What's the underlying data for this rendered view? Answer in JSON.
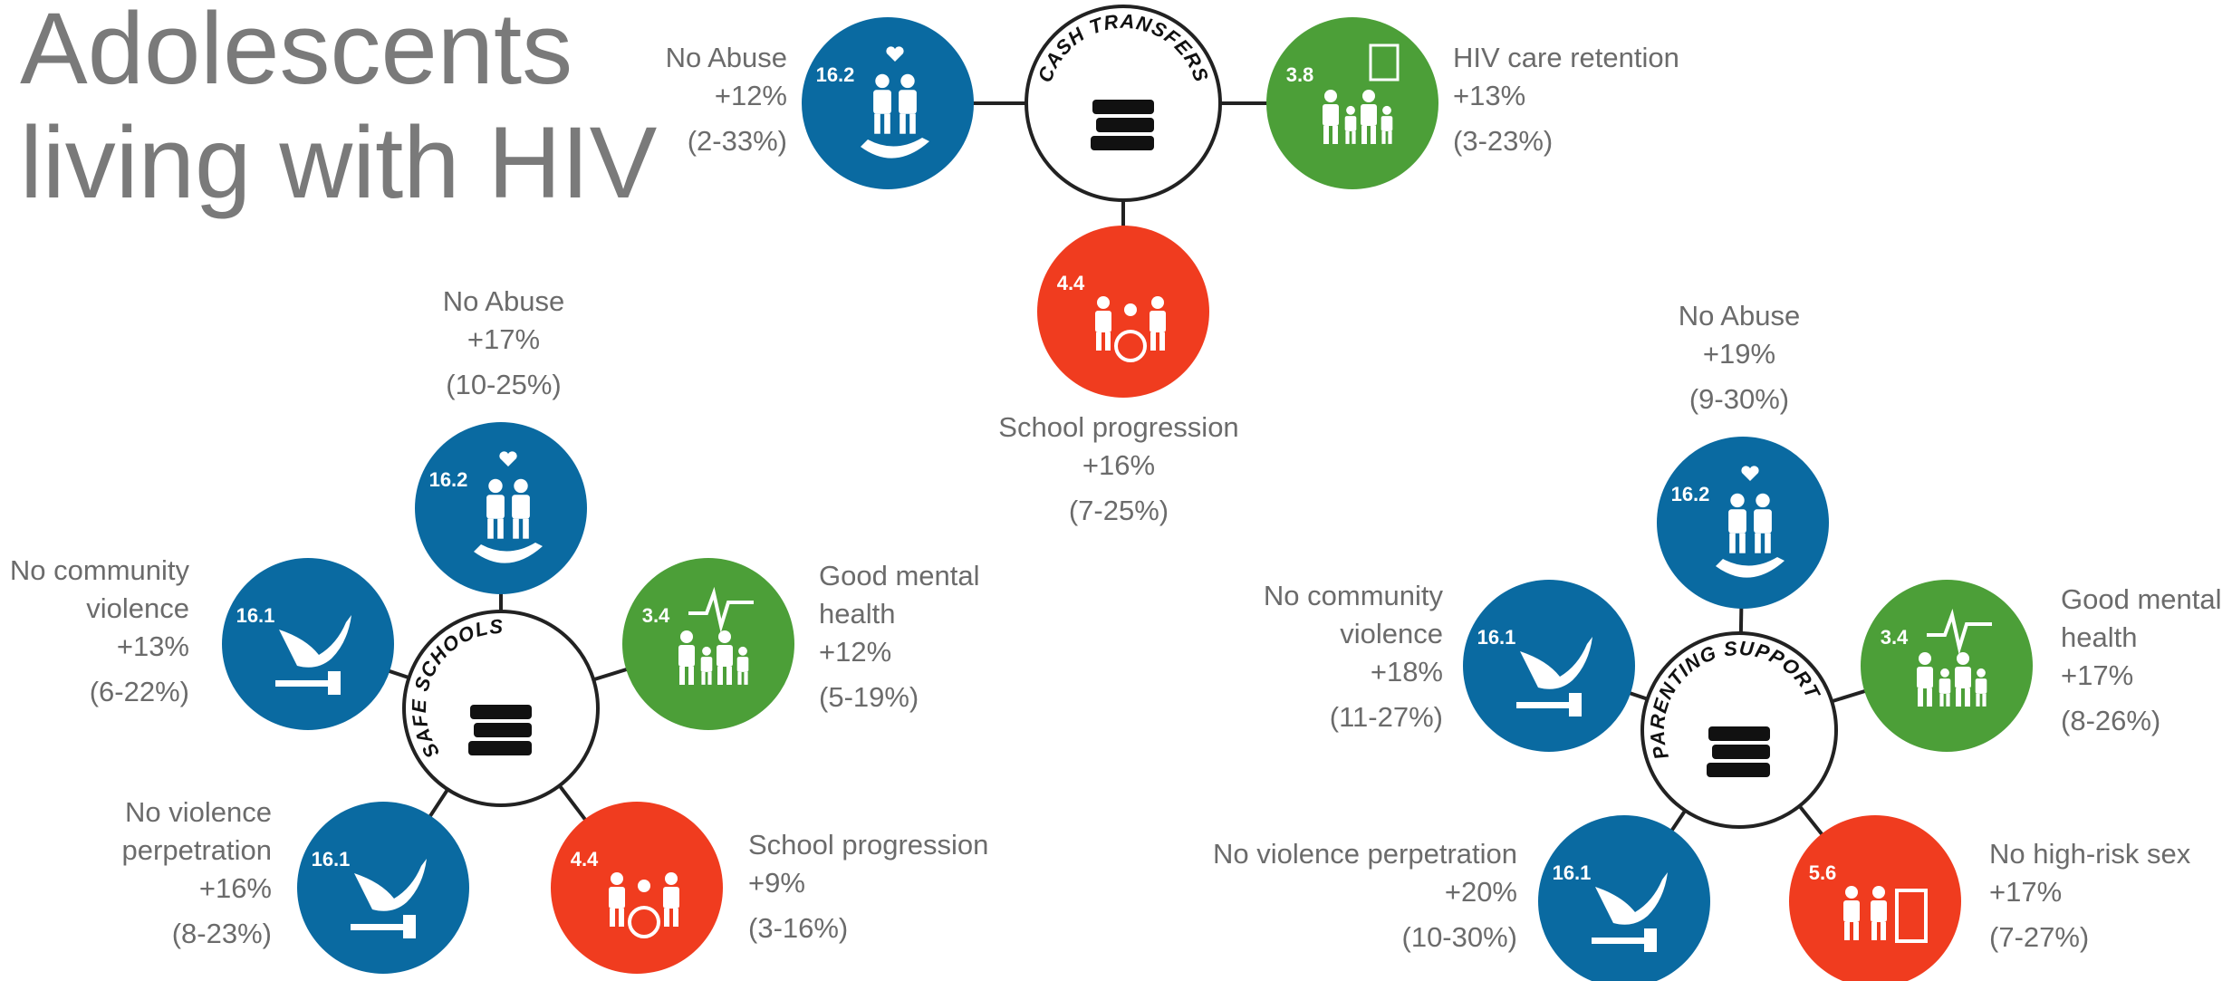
{
  "title": [
    "Adolescents",
    "living with HIV"
  ],
  "hubs": [
    {
      "label": "CASH TRANSFERS",
      "outcomes": [
        {
          "code": "16.2",
          "label": [
            "No Abuse"
          ],
          "effect": "+12%",
          "ci": "(2-33%)"
        },
        {
          "code": "3.8",
          "label": [
            "HIV care retention"
          ],
          "effect": "+13%",
          "ci": "(3-23%)"
        },
        {
          "code": "4.4",
          "label": [
            "School progression"
          ],
          "effect": "+16%",
          "ci": "(7-25%)"
        }
      ]
    },
    {
      "label": "SAFE SCHOOLS",
      "outcomes": [
        {
          "code": "16.2",
          "label": [
            "No Abuse"
          ],
          "effect": "+17%",
          "ci": "(10-25%)"
        },
        {
          "code": "3.4",
          "label": [
            "Good mental",
            "health"
          ],
          "effect": "+12%",
          "ci": "(5-19%)"
        },
        {
          "code": "4.4",
          "label": [
            "School progression"
          ],
          "effect": "+9%",
          "ci": "(3-16%)"
        },
        {
          "code": "16.1",
          "label": [
            "No violence",
            "perpetration"
          ],
          "effect": "+16%",
          "ci": "(8-23%)"
        },
        {
          "code": "16.1",
          "label": [
            "No community",
            "violence"
          ],
          "effect": "+13%",
          "ci": "(6-22%)"
        }
      ]
    },
    {
      "label": "PARENTING SUPPORT",
      "outcomes": [
        {
          "code": "16.2",
          "label": [
            "No Abuse"
          ],
          "effect": "+19%",
          "ci": "(9-30%)"
        },
        {
          "code": "3.4",
          "label": [
            "Good mental",
            "health"
          ],
          "effect": "+17%",
          "ci": "(8-26%)"
        },
        {
          "code": "5.6",
          "label": [
            "No high-risk sex"
          ],
          "effect": "+17%",
          "ci": "(7-27%)"
        },
        {
          "code": "16.1",
          "label": [
            "No violence perpetration"
          ],
          "effect": "+20%",
          "ci": "(10-30%)"
        },
        {
          "code": "16.1",
          "label": [
            "No community",
            "violence"
          ],
          "effect": "+18%",
          "ci": "(11-27%)"
        }
      ]
    }
  ]
}
